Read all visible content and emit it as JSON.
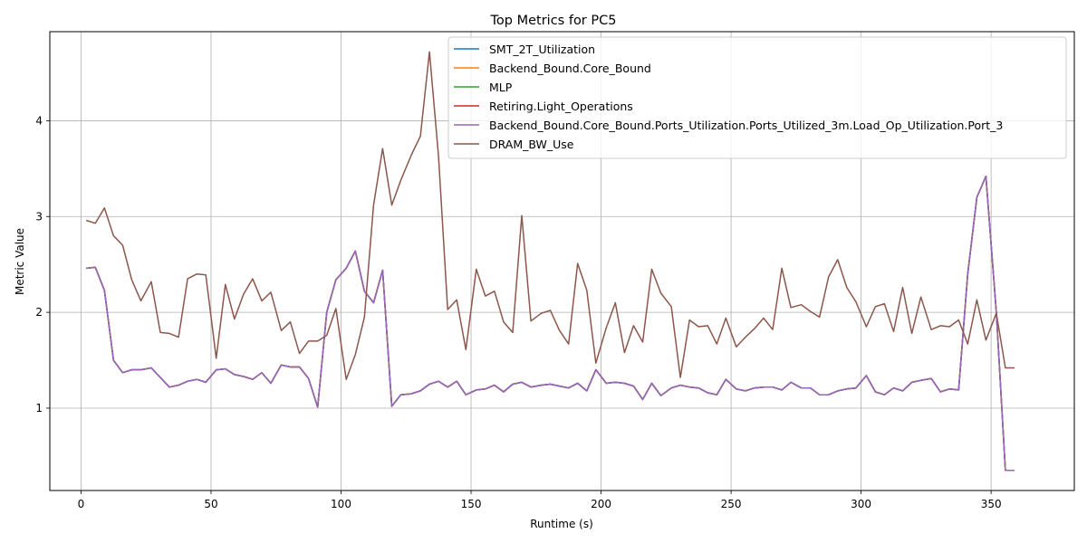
{
  "chart_data": {
    "type": "line",
    "title": "Top Metrics for PC5",
    "xlabel": "Runtime (s)",
    "ylabel": "Metric Value",
    "xlim": [
      -12,
      382
    ],
    "ylim": [
      0.14,
      4.93
    ],
    "x_ticks": [
      0,
      50,
      100,
      150,
      200,
      250,
      300,
      350
    ],
    "y_ticks": [
      1,
      2,
      3,
      4
    ],
    "grid": true,
    "legend_position": "top-right",
    "colors": [
      "#1f77b4",
      "#ff7f0e",
      "#2ca02c",
      "#d62728",
      "#9467bd",
      "#8c564b"
    ],
    "series": [
      {
        "name": "SMT_2T_Utilization",
        "color": "#1f77b4",
        "shared_values": "core"
      },
      {
        "name": "Backend_Bound.Core_Bound",
        "color": "#ff7f0e",
        "shared_values": "core"
      },
      {
        "name": "MLP",
        "color": "#2ca02c",
        "shared_values": "core"
      },
      {
        "name": "Retiring.Light_Operations",
        "color": "#d62728",
        "shared_values": "core"
      },
      {
        "name": "Backend_Bound.Core_Bound.Ports_Utilization.Ports_Utilized_3m.Load_Op_Utilization.Port_3",
        "color": "#9467bd",
        "shared_values": "core"
      },
      {
        "name": "DRAM_BW_Use",
        "color": "#8c564b",
        "shared_values": "dram"
      }
    ],
    "core": [
      [
        2,
        2.46
      ],
      [
        5.5,
        2.47
      ],
      [
        9,
        2.23
      ],
      [
        12.5,
        1.5
      ],
      [
        16,
        1.37
      ],
      [
        19.5,
        1.4
      ],
      [
        23,
        1.4
      ],
      [
        27,
        1.42
      ],
      [
        30.5,
        1.32
      ],
      [
        34,
        1.22
      ],
      [
        37.5,
        1.24
      ],
      [
        41,
        1.28
      ],
      [
        44.5,
        1.3
      ],
      [
        48,
        1.27
      ],
      [
        52,
        1.4
      ],
      [
        55.5,
        1.41
      ],
      [
        59,
        1.35
      ],
      [
        62.5,
        1.33
      ],
      [
        66,
        1.3
      ],
      [
        69.5,
        1.37
      ],
      [
        73,
        1.26
      ],
      [
        77,
        1.45
      ],
      [
        80.5,
        1.43
      ],
      [
        84,
        1.43
      ],
      [
        87.5,
        1.31
      ],
      [
        91,
        1.01
      ],
      [
        94.5,
        2.0
      ],
      [
        98,
        2.34
      ],
      [
        102,
        2.46
      ],
      [
        105.5,
        2.64
      ],
      [
        109,
        2.22
      ],
      [
        112.5,
        2.1
      ],
      [
        116,
        2.44
      ],
      [
        119.5,
        1.02
      ],
      [
        123,
        1.14
      ],
      [
        127,
        1.15
      ],
      [
        130.5,
        1.18
      ],
      [
        134,
        1.25
      ],
      [
        137.5,
        1.28
      ],
      [
        141,
        1.22
      ],
      [
        144.5,
        1.28
      ],
      [
        148,
        1.14
      ],
      [
        152,
        1.19
      ],
      [
        155.5,
        1.2
      ],
      [
        159,
        1.24
      ],
      [
        162.5,
        1.17
      ],
      [
        166,
        1.25
      ],
      [
        169.5,
        1.27
      ],
      [
        173,
        1.22
      ],
      [
        177,
        1.24
      ],
      [
        180.5,
        1.25
      ],
      [
        184,
        1.23
      ],
      [
        187.5,
        1.21
      ],
      [
        191,
        1.26
      ],
      [
        194.5,
        1.18
      ],
      [
        198,
        1.4
      ],
      [
        202,
        1.26
      ],
      [
        205.5,
        1.27
      ],
      [
        209,
        1.26
      ],
      [
        212.5,
        1.23
      ],
      [
        216,
        1.09
      ],
      [
        219.5,
        1.26
      ],
      [
        223,
        1.13
      ],
      [
        227,
        1.21
      ],
      [
        230.5,
        1.24
      ],
      [
        234,
        1.22
      ],
      [
        237.5,
        1.21
      ],
      [
        241,
        1.16
      ],
      [
        244.5,
        1.14
      ],
      [
        248,
        1.3
      ],
      [
        252,
        1.2
      ],
      [
        255.5,
        1.18
      ],
      [
        259,
        1.21
      ],
      [
        262.5,
        1.22
      ],
      [
        266,
        1.22
      ],
      [
        269.5,
        1.19
      ],
      [
        273,
        1.27
      ],
      [
        277,
        1.21
      ],
      [
        280.5,
        1.21
      ],
      [
        284,
        1.14
      ],
      [
        287.5,
        1.14
      ],
      [
        291,
        1.18
      ],
      [
        294.5,
        1.2
      ],
      [
        298,
        1.21
      ],
      [
        302,
        1.34
      ],
      [
        305.5,
        1.17
      ],
      [
        309,
        1.14
      ],
      [
        312.5,
        1.21
      ],
      [
        316,
        1.18
      ],
      [
        319.5,
        1.27
      ],
      [
        323,
        1.29
      ],
      [
        327,
        1.31
      ],
      [
        330.5,
        1.17
      ],
      [
        334,
        1.2
      ],
      [
        337.5,
        1.19
      ],
      [
        341,
        2.4
      ],
      [
        344.5,
        3.2
      ],
      [
        348,
        3.42
      ],
      [
        352,
        2.0
      ],
      [
        355.5,
        0.35
      ],
      [
        359,
        0.35
      ]
    ],
    "dram": [
      [
        2,
        2.96
      ],
      [
        5.5,
        2.93
      ],
      [
        9,
        3.09
      ],
      [
        12.5,
        2.8
      ],
      [
        16,
        2.7
      ],
      [
        19.5,
        2.34
      ],
      [
        23,
        2.12
      ],
      [
        27,
        2.32
      ],
      [
        30.5,
        1.79
      ],
      [
        34,
        1.78
      ],
      [
        37.5,
        1.74
      ],
      [
        41,
        2.35
      ],
      [
        44.5,
        2.4
      ],
      [
        48,
        2.39
      ],
      [
        52,
        1.52
      ],
      [
        55.5,
        2.29
      ],
      [
        59,
        1.93
      ],
      [
        62.5,
        2.19
      ],
      [
        66,
        2.35
      ],
      [
        69.5,
        2.12
      ],
      [
        73,
        2.21
      ],
      [
        77,
        1.81
      ],
      [
        80.5,
        1.9
      ],
      [
        84,
        1.57
      ],
      [
        87.5,
        1.7
      ],
      [
        91,
        1.7
      ],
      [
        94.5,
        1.76
      ],
      [
        98,
        2.04
      ],
      [
        102,
        1.3
      ],
      [
        105.5,
        1.56
      ],
      [
        109,
        1.95
      ],
      [
        112.5,
        3.12
      ],
      [
        116,
        3.71
      ],
      [
        119.5,
        3.12
      ],
      [
        123,
        3.38
      ],
      [
        127,
        3.64
      ],
      [
        130.5,
        3.84
      ],
      [
        134,
        4.72
      ],
      [
        137.5,
        3.63
      ],
      [
        141,
        2.03
      ],
      [
        144.5,
        2.13
      ],
      [
        148,
        1.61
      ],
      [
        152,
        2.45
      ],
      [
        155.5,
        2.17
      ],
      [
        159,
        2.22
      ],
      [
        162.5,
        1.9
      ],
      [
        166,
        1.79
      ],
      [
        169.5,
        3.01
      ],
      [
        173,
        1.91
      ],
      [
        177,
        1.99
      ],
      [
        180.5,
        2.02
      ],
      [
        184,
        1.81
      ],
      [
        187.5,
        1.67
      ],
      [
        191,
        2.51
      ],
      [
        194.5,
        2.23
      ],
      [
        198,
        1.47
      ],
      [
        202,
        1.84
      ],
      [
        205.5,
        2.1
      ],
      [
        209,
        1.58
      ],
      [
        212.5,
        1.86
      ],
      [
        216,
        1.69
      ],
      [
        219.5,
        2.45
      ],
      [
        223,
        2.2
      ],
      [
        227,
        2.06
      ],
      [
        230.5,
        1.32
      ],
      [
        234,
        1.92
      ],
      [
        237.5,
        1.85
      ],
      [
        241,
        1.86
      ],
      [
        244.5,
        1.67
      ],
      [
        248,
        1.94
      ],
      [
        252,
        1.64
      ],
      [
        255.5,
        1.74
      ],
      [
        259,
        1.83
      ],
      [
        262.5,
        1.94
      ],
      [
        266,
        1.82
      ],
      [
        269.5,
        2.46
      ],
      [
        273,
        2.05
      ],
      [
        277,
        2.08
      ],
      [
        280.5,
        2.01
      ],
      [
        284,
        1.95
      ],
      [
        287.5,
        2.37
      ],
      [
        291,
        2.55
      ],
      [
        294.5,
        2.26
      ],
      [
        298,
        2.11
      ],
      [
        302,
        1.85
      ],
      [
        305.5,
        2.06
      ],
      [
        309,
        2.09
      ],
      [
        312.5,
        1.8
      ],
      [
        316,
        2.26
      ],
      [
        319.5,
        1.78
      ],
      [
        323,
        2.16
      ],
      [
        327,
        1.82
      ],
      [
        330.5,
        1.86
      ],
      [
        334,
        1.85
      ],
      [
        337.5,
        1.92
      ],
      [
        341,
        1.67
      ],
      [
        344.5,
        2.13
      ],
      [
        348,
        1.71
      ],
      [
        352,
        1.99
      ],
      [
        355.5,
        1.42
      ],
      [
        359,
        1.42
      ]
    ]
  }
}
